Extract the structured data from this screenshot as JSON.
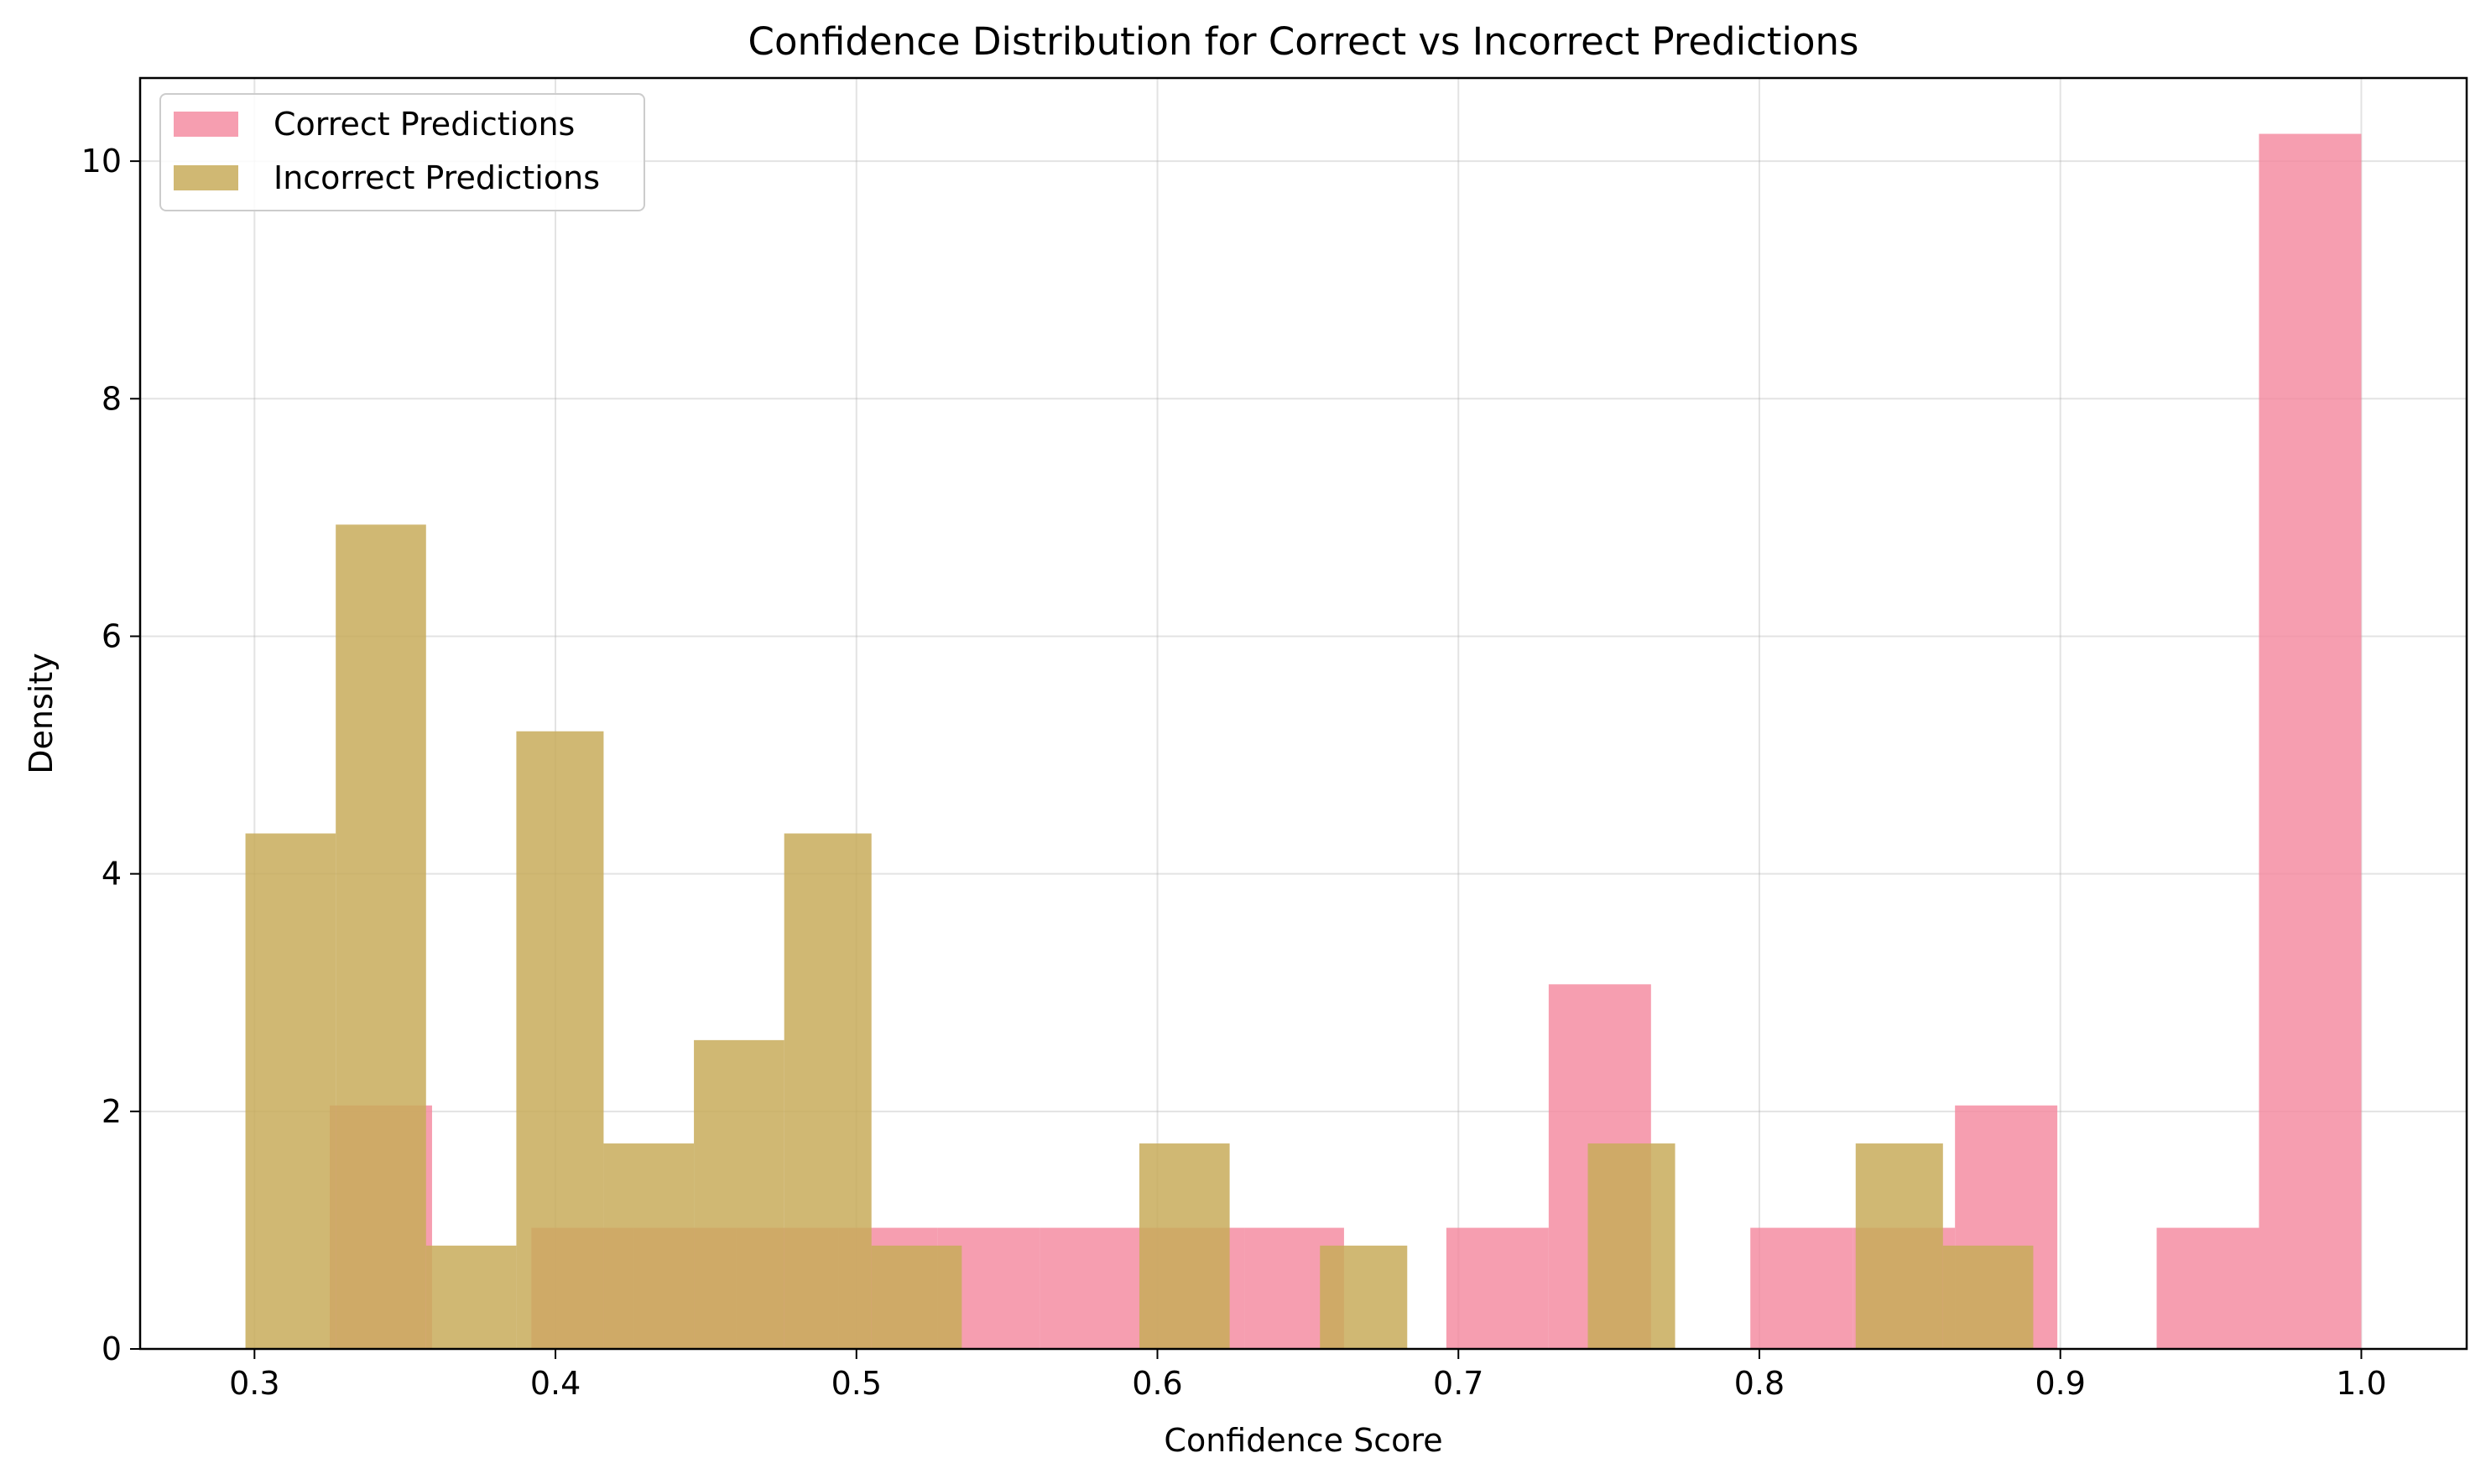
{
  "chart_data": {
    "type": "bar",
    "title": "Confidence Distribution for Correct vs Incorrect Predictions",
    "xlabel": "Confidence Score",
    "ylabel": "Density",
    "xlim": [
      0.262,
      1.035
    ],
    "ylim": [
      0,
      10.7
    ],
    "xticks": [
      "0.3",
      "0.4",
      "0.5",
      "0.6",
      "0.7",
      "0.8",
      "0.9",
      "1.0"
    ],
    "yticks": [
      "0",
      "2",
      "4",
      "6",
      "8",
      "10"
    ],
    "grid": true,
    "legend_position": "top-left",
    "series": [
      {
        "name": "Correct Predictions",
        "color": "#f4869c",
        "opacity": 0.8,
        "bins": [
          {
            "x0": 0.325,
            "x1": 0.359,
            "y": 2.05
          },
          {
            "x0": 0.359,
            "x1": 0.392,
            "y": 0.0
          },
          {
            "x0": 0.392,
            "x1": 0.426,
            "y": 1.02
          },
          {
            "x0": 0.426,
            "x1": 0.46,
            "y": 1.02
          },
          {
            "x0": 0.46,
            "x1": 0.494,
            "y": 1.02
          },
          {
            "x0": 0.494,
            "x1": 0.527,
            "y": 1.02
          },
          {
            "x0": 0.527,
            "x1": 0.561,
            "y": 1.02
          },
          {
            "x0": 0.561,
            "x1": 0.595,
            "y": 1.02
          },
          {
            "x0": 0.595,
            "x1": 0.629,
            "y": 1.02
          },
          {
            "x0": 0.629,
            "x1": 0.662,
            "y": 1.02
          },
          {
            "x0": 0.662,
            "x1": 0.696,
            "y": 0.0
          },
          {
            "x0": 0.696,
            "x1": 0.73,
            "y": 1.02
          },
          {
            "x0": 0.73,
            "x1": 0.764,
            "y": 3.07
          },
          {
            "x0": 0.764,
            "x1": 0.797,
            "y": 0.0
          },
          {
            "x0": 0.797,
            "x1": 0.831,
            "y": 1.02
          },
          {
            "x0": 0.831,
            "x1": 0.865,
            "y": 1.02
          },
          {
            "x0": 0.865,
            "x1": 0.899,
            "y": 2.05
          },
          {
            "x0": 0.899,
            "x1": 0.932,
            "y": 0.0
          },
          {
            "x0": 0.932,
            "x1": 0.966,
            "y": 1.02
          },
          {
            "x0": 0.966,
            "x1": 1.0,
            "y": 10.23
          }
        ]
      },
      {
        "name": "Incorrect Predictions",
        "color": "#c8ac5a",
        "opacity": 0.85,
        "bins": [
          {
            "x0": 0.297,
            "x1": 0.327,
            "y": 4.34
          },
          {
            "x0": 0.327,
            "x1": 0.357,
            "y": 6.94
          },
          {
            "x0": 0.357,
            "x1": 0.387,
            "y": 0.87
          },
          {
            "x0": 0.387,
            "x1": 0.416,
            "y": 5.2
          },
          {
            "x0": 0.416,
            "x1": 0.446,
            "y": 1.73
          },
          {
            "x0": 0.446,
            "x1": 0.476,
            "y": 2.6
          },
          {
            "x0": 0.476,
            "x1": 0.505,
            "y": 4.34
          },
          {
            "x0": 0.505,
            "x1": 0.535,
            "y": 0.87
          },
          {
            "x0": 0.535,
            "x1": 0.565,
            "y": 0.0
          },
          {
            "x0": 0.565,
            "x1": 0.594,
            "y": 0.0
          },
          {
            "x0": 0.594,
            "x1": 0.624,
            "y": 1.73
          },
          {
            "x0": 0.624,
            "x1": 0.654,
            "y": 0.0
          },
          {
            "x0": 0.654,
            "x1": 0.683,
            "y": 0.87
          },
          {
            "x0": 0.683,
            "x1": 0.713,
            "y": 0.0
          },
          {
            "x0": 0.713,
            "x1": 0.743,
            "y": 0.0
          },
          {
            "x0": 0.743,
            "x1": 0.772,
            "y": 1.73
          },
          {
            "x0": 0.772,
            "x1": 0.802,
            "y": 0.0
          },
          {
            "x0": 0.802,
            "x1": 0.832,
            "y": 0.0
          },
          {
            "x0": 0.832,
            "x1": 0.861,
            "y": 1.73
          },
          {
            "x0": 0.861,
            "x1": 0.891,
            "y": 0.87
          }
        ]
      }
    ]
  }
}
